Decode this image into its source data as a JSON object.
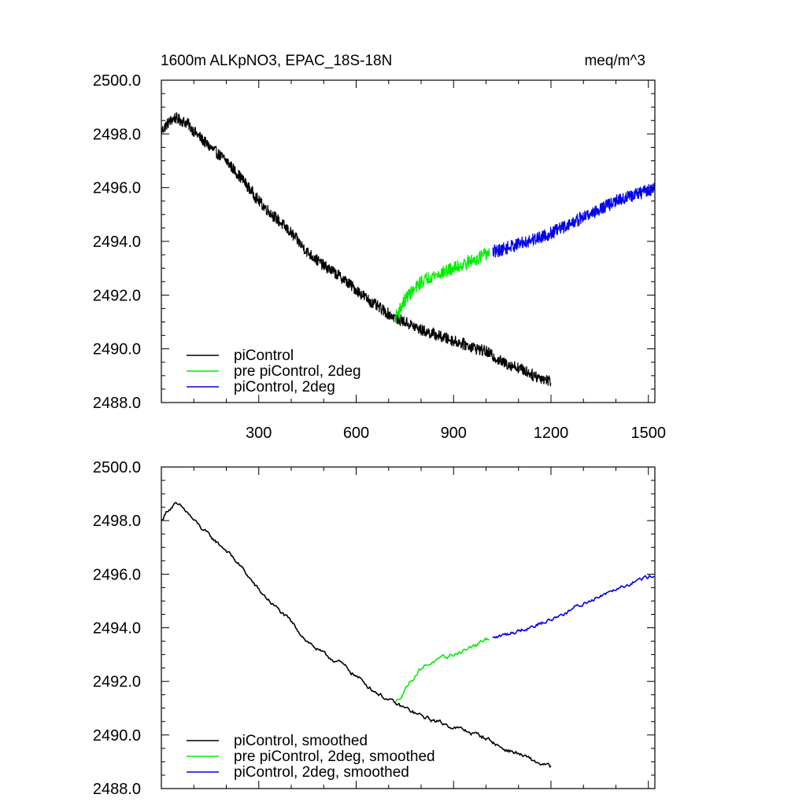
{
  "chart_data": [
    {
      "type": "line",
      "title": "1600m ALKpNO3, EPAC_18S-18N",
      "units": "meq/m^3",
      "xlim": [
        0,
        1520
      ],
      "ylim": [
        2488,
        2500
      ],
      "x_ticks": [
        300,
        600,
        900,
        1200,
        1500
      ],
      "x_tick_labels": [
        "300",
        "600",
        "900",
        "1200",
        "1500"
      ],
      "y_ticks": [
        2488,
        2490,
        2492,
        2494,
        2496,
        2498,
        2500
      ],
      "y_tick_labels": [
        "2488.0",
        "2490.0",
        "2492.0",
        "2494.0",
        "2496.0",
        "2498.0",
        "2500.0"
      ],
      "legend_position": "bottom-left",
      "series": [
        {
          "name": "piControl",
          "color": "#000000",
          "noise": 0.22,
          "x": [
            0,
            20,
            40,
            60,
            80,
            100,
            150,
            200,
            250,
            300,
            350,
            400,
            450,
            500,
            550,
            600,
            650,
            700,
            730,
            750,
            800,
            850,
            900,
            950,
            1000,
            1050,
            1100,
            1150,
            1200
          ],
          "y": [
            2498.1,
            2498.4,
            2498.6,
            2498.5,
            2498.4,
            2498.1,
            2497.5,
            2497.0,
            2496.3,
            2495.5,
            2494.9,
            2494.3,
            2493.6,
            2493.1,
            2492.7,
            2492.2,
            2491.7,
            2491.3,
            2491.1,
            2491.0,
            2490.7,
            2490.5,
            2490.3,
            2490.1,
            2489.9,
            2489.5,
            2489.3,
            2489.0,
            2488.8
          ]
        },
        {
          "name": "pre piControl, 2deg",
          "color": "#00ee00",
          "noise": 0.25,
          "x": [
            722,
            740,
            760,
            780,
            800,
            830,
            860,
            900,
            940,
            980,
            1010
          ],
          "y": [
            2491.2,
            2491.6,
            2492.0,
            2492.2,
            2492.5,
            2492.7,
            2492.8,
            2493.0,
            2493.2,
            2493.4,
            2493.6
          ]
        },
        {
          "name": "piControl, 2deg",
          "color": "#0000ee",
          "noise": 0.25,
          "x": [
            1020,
            1050,
            1100,
            1150,
            1200,
            1250,
            1300,
            1350,
            1400,
            1450,
            1500,
            1518
          ],
          "y": [
            2493.6,
            2493.7,
            2493.9,
            2494.1,
            2494.3,
            2494.6,
            2494.9,
            2495.2,
            2495.5,
            2495.7,
            2495.9,
            2496.0
          ]
        }
      ]
    },
    {
      "type": "line",
      "xlim": [
        0,
        1520
      ],
      "ylim": [
        2488,
        2500
      ],
      "x_ticks": [
        300,
        600,
        900,
        1200,
        1500
      ],
      "y_ticks": [
        2488,
        2490,
        2492,
        2494,
        2496,
        2498,
        2500
      ],
      "y_tick_labels": [
        "2488.0",
        "2490.0",
        "2492.0",
        "2494.0",
        "2496.0",
        "2498.0",
        "2500.0"
      ],
      "legend_position": "bottom-left",
      "series": [
        {
          "name": "piControl, smoothed",
          "color": "#000000",
          "noise": 0.06,
          "x": [
            0,
            20,
            40,
            60,
            80,
            100,
            150,
            200,
            250,
            300,
            350,
            400,
            450,
            500,
            550,
            600,
            650,
            700,
            730,
            750,
            800,
            850,
            900,
            950,
            1000,
            1050,
            1100,
            1150,
            1200
          ],
          "y": [
            2498.0,
            2498.4,
            2498.6,
            2498.5,
            2498.3,
            2498.0,
            2497.4,
            2496.9,
            2496.2,
            2495.4,
            2494.8,
            2494.2,
            2493.5,
            2493.0,
            2492.7,
            2492.2,
            2491.7,
            2491.3,
            2491.1,
            2491.0,
            2490.7,
            2490.5,
            2490.3,
            2490.1,
            2489.9,
            2489.5,
            2489.3,
            2489.0,
            2488.8
          ]
        },
        {
          "name": "pre piControl, 2deg, smoothed",
          "color": "#00ee00",
          "noise": 0.06,
          "x": [
            722,
            740,
            760,
            780,
            800,
            830,
            860,
            900,
            940,
            980,
            1010
          ],
          "y": [
            2491.2,
            2491.5,
            2491.9,
            2492.2,
            2492.5,
            2492.7,
            2492.8,
            2493.0,
            2493.2,
            2493.4,
            2493.6
          ]
        },
        {
          "name": "piControl, 2deg, smoothed",
          "color": "#0000ee",
          "noise": 0.06,
          "x": [
            1020,
            1050,
            1100,
            1150,
            1200,
            1250,
            1300,
            1350,
            1400,
            1450,
            1500,
            1518
          ],
          "y": [
            2493.6,
            2493.7,
            2493.9,
            2494.1,
            2494.3,
            2494.6,
            2494.9,
            2495.2,
            2495.5,
            2495.7,
            2495.9,
            2496.0
          ]
        }
      ]
    }
  ]
}
